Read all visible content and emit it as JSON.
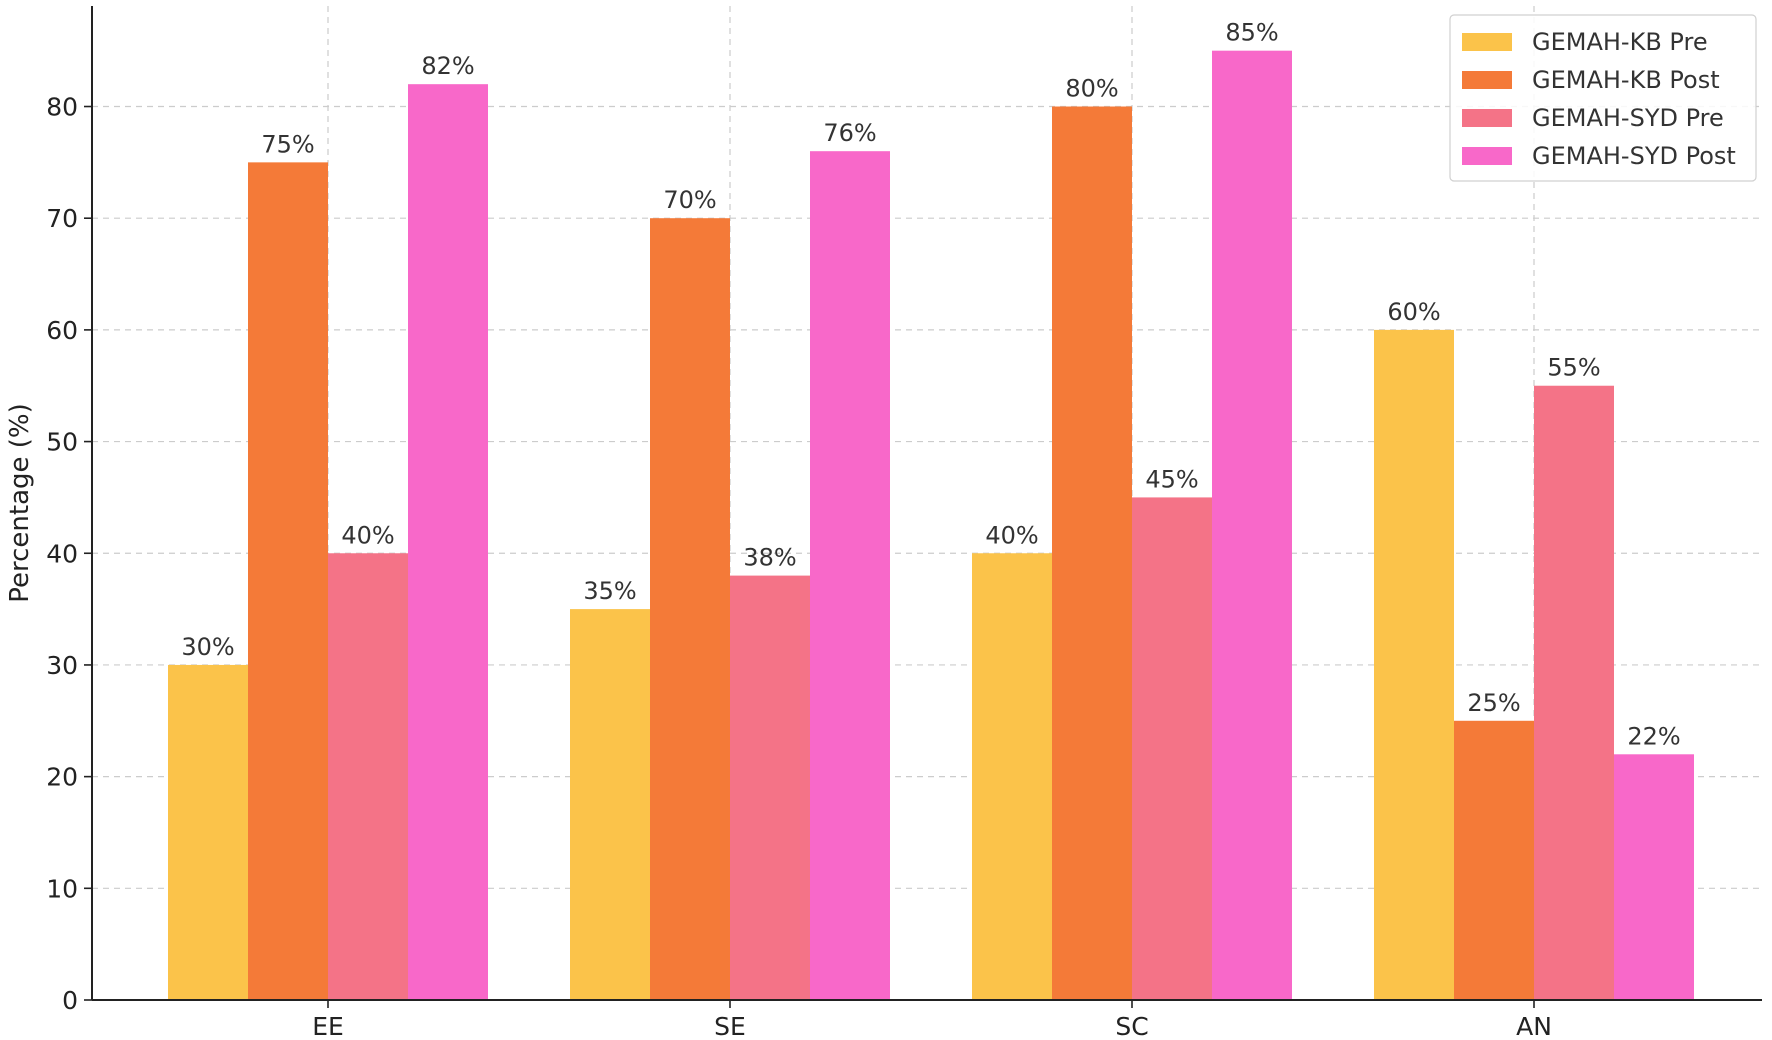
{
  "chart_data": {
    "type": "bar",
    "categories": [
      "EE",
      "SE",
      "SC",
      "AN"
    ],
    "series": [
      {
        "name": "GEMAH-KB Pre",
        "color": "#FBC34A",
        "values": [
          30,
          35,
          40,
          60
        ],
        "labels": [
          "30%",
          "35%",
          "40%",
          "60%"
        ]
      },
      {
        "name": "GEMAH-KB Post",
        "color": "#F47A38",
        "values": [
          75,
          70,
          80,
          25
        ],
        "labels": [
          "75%",
          "70%",
          "80%",
          "25%"
        ]
      },
      {
        "name": "GEMAH-SYD Pre",
        "color": "#F47387",
        "values": [
          40,
          38,
          45,
          55
        ],
        "labels": [
          "40%",
          "38%",
          "45%",
          "55%"
        ]
      },
      {
        "name": "GEMAH-SYD Post",
        "color": "#F868C9",
        "values": [
          82,
          76,
          85,
          22
        ],
        "labels": [
          "82%",
          "76%",
          "85%",
          "22%"
        ]
      }
    ],
    "title": "",
    "xlabel": "",
    "ylabel": "Percentage (%)",
    "ylim": [
      0,
      89
    ],
    "yticks": [
      0,
      10,
      20,
      30,
      40,
      50,
      60,
      70,
      80
    ],
    "grid": true,
    "legend_position": "top-right"
  }
}
